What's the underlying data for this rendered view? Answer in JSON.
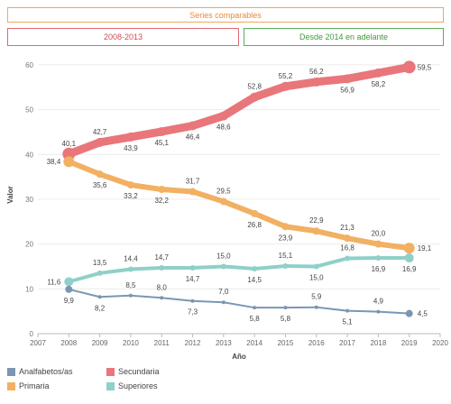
{
  "bands": {
    "top_label": "Series comparables",
    "left_label": "2008-2013",
    "right_label": "Desde 2014 en adelante"
  },
  "chart_data": {
    "type": "line",
    "xlabel": "Año",
    "ylabel": "Valor",
    "xlim": [
      2007,
      2020
    ],
    "ylim": [
      0,
      62
    ],
    "x_ticks": [
      "2007",
      "2008",
      "2009",
      "2010",
      "2011",
      "2012",
      "2013",
      "2014",
      "2015",
      "2016",
      "2017",
      "2018",
      "2019",
      "2020"
    ],
    "y_ticks": [
      "0",
      "10",
      "20",
      "30",
      "40",
      "50",
      "60"
    ],
    "x": [
      2008,
      2009,
      2010,
      2011,
      2012,
      2013,
      2014,
      2015,
      2016,
      2017,
      2018,
      2019
    ],
    "series": [
      {
        "name": "Secundaria",
        "color": "#e8767b",
        "values": [
          40.1,
          42.7,
          43.9,
          45.1,
          46.4,
          48.6,
          52.8,
          55.2,
          56.2,
          56.9,
          58.2,
          59.5
        ],
        "labels": [
          "40,1",
          "42,7",
          "43,9",
          "45,1",
          "46,4",
          "48,6",
          "52,8",
          "55,2",
          "56,2",
          "56,9",
          "58,2",
          "59,5"
        ],
        "label_pos": [
          "above",
          "above",
          "below",
          "below",
          "below",
          "below",
          "above",
          "above",
          "above",
          "below",
          "below",
          "right"
        ]
      },
      {
        "name": "Primaria",
        "color": "#f2b062",
        "values": [
          38.4,
          35.6,
          33.2,
          32.2,
          31.7,
          29.5,
          26.8,
          23.9,
          22.9,
          21.3,
          20.0,
          19.1
        ],
        "labels": [
          "38,4",
          "35,6",
          "33,2",
          "32,2",
          "31,7",
          "29,5",
          "26,8",
          "23,9",
          "22,9",
          "21,3",
          "20,0",
          "19,1"
        ],
        "label_pos": [
          "left",
          "below",
          "below",
          "below",
          "above",
          "above",
          "below",
          "below",
          "above",
          "above",
          "above",
          "right"
        ]
      },
      {
        "name": "Superiores",
        "color": "#8fd0c8",
        "values": [
          11.6,
          13.5,
          14.4,
          14.7,
          14.7,
          15.0,
          14.5,
          15.1,
          15.0,
          16.8,
          16.9,
          16.9
        ],
        "labels": [
          "11,6",
          "13,5",
          "14,4",
          "14,7",
          "14,7",
          "15,0",
          "14,5",
          "15,1",
          "15,0",
          "16,8",
          "16,9",
          "16,9"
        ],
        "label_pos": [
          "left",
          "above",
          "above",
          "above",
          "below",
          "above",
          "below",
          "above",
          "below",
          "above",
          "below",
          "below"
        ]
      },
      {
        "name": "Analfabetos/as",
        "color": "#7b96b3",
        "values": [
          9.9,
          8.2,
          8.5,
          8.0,
          7.3,
          7.0,
          5.8,
          5.8,
          5.9,
          5.1,
          4.9,
          4.5
        ],
        "labels": [
          "9,9",
          "8,2",
          "8,5",
          "8,0",
          "7,3",
          "7,0",
          "5,8",
          "5,8",
          "5,9",
          "5,1",
          "4,9",
          "4,5"
        ],
        "label_pos": [
          "below",
          "below",
          "above",
          "above",
          "below",
          "above",
          "below",
          "below",
          "above",
          "below",
          "above",
          "right"
        ]
      }
    ],
    "legend": {
      "placement": "bottom-left",
      "items": [
        {
          "name": "Analfabetos/as",
          "color": "#7b96b3"
        },
        {
          "name": "Secundaria",
          "color": "#e8767b"
        },
        {
          "name": "Primaria",
          "color": "#f2b062"
        },
        {
          "name": "Superiores",
          "color": "#8fd0c8"
        }
      ]
    }
  }
}
